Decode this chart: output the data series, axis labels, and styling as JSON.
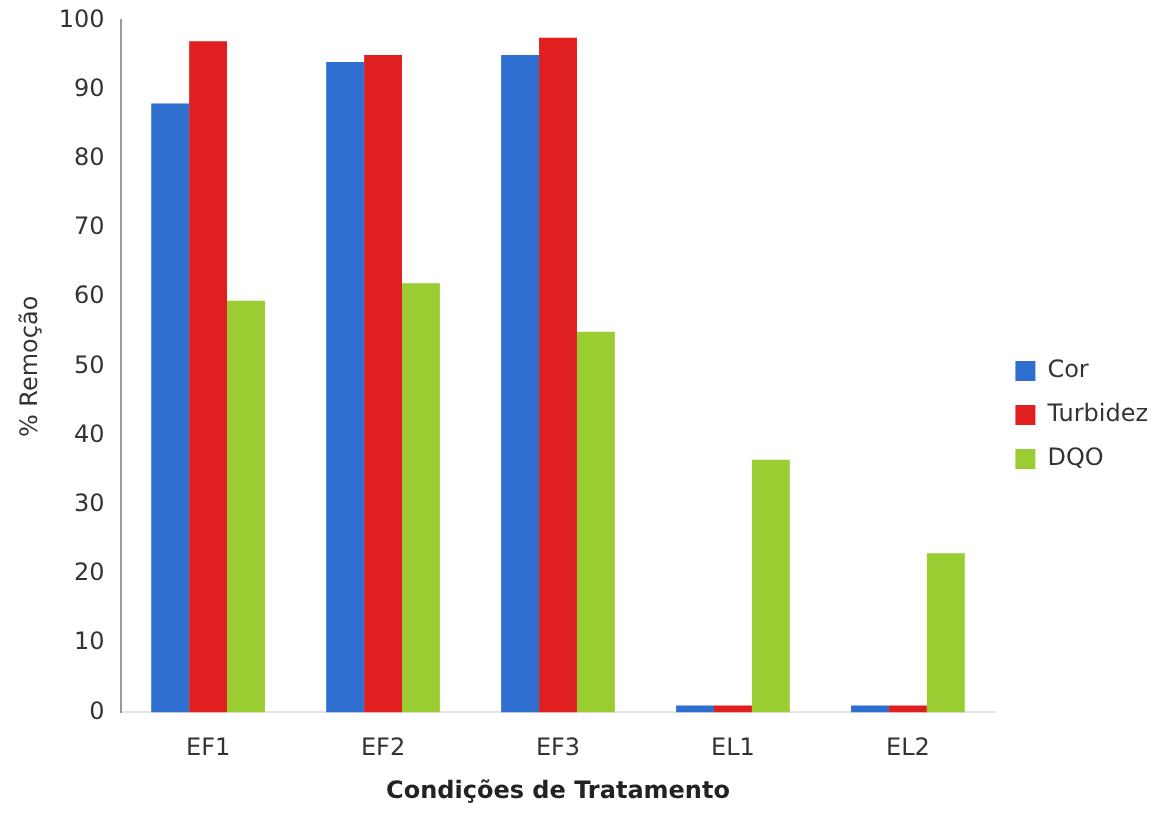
{
  "chart_data": {
    "type": "bar",
    "xlabel": "Condições de Tratamento",
    "ylabel": "% Remoção",
    "categories": [
      "EF1",
      "EF2",
      "EF3",
      "EL1",
      "EL2"
    ],
    "series": [
      {
        "name": "Cor",
        "color": "#2f6fd0",
        "values": [
          88,
          94,
          95,
          1,
          1
        ]
      },
      {
        "name": "Turbidez",
        "color": "#e02020",
        "values": [
          97,
          95,
          97.5,
          1,
          1
        ]
      },
      {
        "name": "DQO",
        "color": "#9acd32",
        "values": [
          59.5,
          62,
          55,
          36.5,
          23
        ]
      }
    ],
    "ylim": [
      0,
      100
    ],
    "yticks": [
      0,
      10,
      20,
      30,
      40,
      50,
      60,
      70,
      80,
      90,
      100
    ],
    "grid": false,
    "legend": "right"
  }
}
